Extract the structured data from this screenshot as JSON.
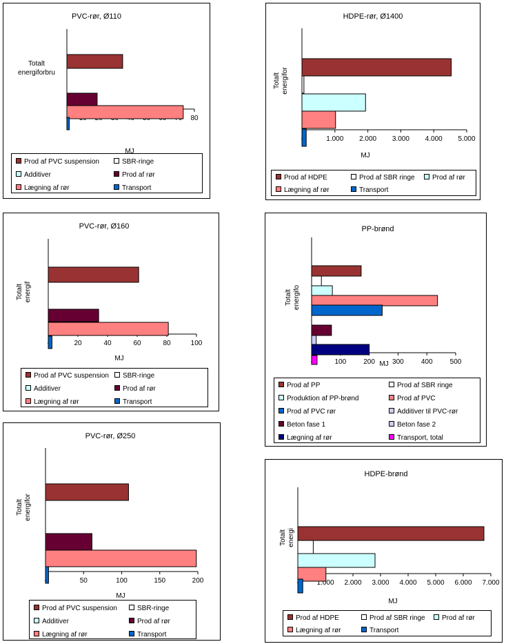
{
  "chart_data": [
    {
      "type": "bar",
      "title": "PVC-rør, Ø110",
      "ylabel": "Totalt energiforbru",
      "xlabel": "MJ",
      "tick_labels": [
        "-",
        "10",
        "20",
        "30",
        "40",
        "50",
        "60",
        "70",
        "80"
      ],
      "xlim": [
        0,
        80
      ],
      "series": [
        {
          "name": "Prod af PVC suspension",
          "value": 35,
          "color": "#993333"
        },
        {
          "name": "SBR-ringe",
          "value": 0,
          "color": "#ffffff"
        },
        {
          "name": "Additiver",
          "value": 0,
          "color": "#ccffff"
        },
        {
          "name": "Prod af rør",
          "value": 19,
          "color": "#660033"
        },
        {
          "name": "Lægning af rør",
          "value": 73,
          "color": "#ff8080"
        },
        {
          "name": "Transport",
          "value": 1.5,
          "color": "#0066cc"
        }
      ]
    },
    {
      "type": "bar",
      "title": "HDPE-rør, Ø1400",
      "ylabel": "Totalt energifor",
      "xlabel": "MJ",
      "tick_labels": [
        "-",
        "1.000",
        "2.000",
        "3.000",
        "4.000",
        "5.000"
      ],
      "xlim": [
        0,
        5000
      ],
      "series": [
        {
          "name": "Prod af HDPE",
          "value": 4530,
          "color": "#993333"
        },
        {
          "name": "Prod af SBR ringe",
          "value": 60,
          "color": "#ffffff"
        },
        {
          "name": "Prod af rør",
          "value": 1930,
          "color": "#ccffff"
        },
        {
          "name": "Lægning af rør",
          "value": 1020,
          "color": "#ff8080"
        },
        {
          "name": "Transport",
          "value": 130,
          "color": "#0066cc"
        }
      ]
    },
    {
      "type": "bar",
      "title": "PVC-rør, Ø160",
      "ylabel": "Totalt energif",
      "xlabel": "MJ",
      "tick_labels": [
        "-",
        "20",
        "40",
        "60",
        "80",
        "100"
      ],
      "xlim": [
        0,
        100
      ],
      "series": [
        {
          "name": "Prod af PVC suspension",
          "value": 61,
          "color": "#993333"
        },
        {
          "name": "SBR-ringe",
          "value": 0,
          "color": "#ffffff"
        },
        {
          "name": "Additiver",
          "value": 0,
          "color": "#ccffff"
        },
        {
          "name": "Prod af rør",
          "value": 34,
          "color": "#660033"
        },
        {
          "name": "Lægning af rør",
          "value": 81,
          "color": "#ff8080"
        },
        {
          "name": "Transport",
          "value": 2.5,
          "color": "#0066cc"
        }
      ]
    },
    {
      "type": "bar",
      "title": "PP-brønd",
      "ylabel": "Totalt energifo",
      "xlabel": "MJ",
      "tick_labels": [
        "-",
        "100",
        "200",
        "300",
        "400",
        "500"
      ],
      "xlim": [
        0,
        500
      ],
      "series": [
        {
          "name": "Prod af PP",
          "value": 172,
          "color": "#993333"
        },
        {
          "name": "Prod af SBR ringe",
          "value": 34,
          "color": "#ffffff"
        },
        {
          "name": "Produktion af PP-brønd",
          "value": 72,
          "color": "#ccffff"
        },
        {
          "name": "Prod af PVC",
          "value": 437,
          "color": "#ff8080"
        },
        {
          "name": "Prod af PVC rør",
          "value": 245,
          "color": "#0066cc"
        },
        {
          "name": "Additiver til PVC-rør",
          "value": 0,
          "color": "#ccccff"
        },
        {
          "name": "Beton fase 1",
          "value": 69,
          "color": "#660033"
        },
        {
          "name": "Beton     fase 2",
          "value": 16,
          "color": "#ccccff"
        },
        {
          "name": "Lægning af rør",
          "value": 200,
          "color": "#000080"
        },
        {
          "name": "Transport, total",
          "value": 19,
          "color": "#ff00ff"
        }
      ]
    },
    {
      "type": "bar",
      "title": "PVC-rør, Ø250",
      "ylabel": "Totalt energifor",
      "xlabel": "MJ",
      "tick_labels": [
        "-",
        "50",
        "100",
        "150",
        "200"
      ],
      "xlim": [
        0,
        200
      ],
      "series": [
        {
          "name": "Prod af PVC suspension",
          "value": 109,
          "color": "#993333"
        },
        {
          "name": "SBR-ringe",
          "value": 0,
          "color": "#ffffff"
        },
        {
          "name": "Additiver",
          "value": 0,
          "color": "#ccffff"
        },
        {
          "name": "Prod af rør",
          "value": 61,
          "color": "#660033"
        },
        {
          "name": "Lægning af rør",
          "value": 198,
          "color": "#ff8080"
        },
        {
          "name": "Transport",
          "value": 4,
          "color": "#0066cc"
        }
      ]
    },
    {
      "type": "bar",
      "title": "HDPE-brønd",
      "ylabel": "Totalt energi",
      "xlabel": "MJ",
      "tick_labels": [
        "-",
        "1.000",
        "2.000",
        "3.000",
        "4.000",
        "5.000",
        "6.000",
        "7.000"
      ],
      "xlim": [
        0,
        7000
      ],
      "series": [
        {
          "name": "Prod af HDPE",
          "value": 6750,
          "color": "#993333"
        },
        {
          "name": "Prod af SBR ringe",
          "value": 560,
          "color": "#ffffff"
        },
        {
          "name": "Prod af rør",
          "value": 2800,
          "color": "#ccffff"
        },
        {
          "name": "Lægning af rør",
          "value": 1020,
          "color": "#ff8080"
        },
        {
          "name": "Transport",
          "value": 180,
          "color": "#0066cc"
        }
      ]
    }
  ]
}
